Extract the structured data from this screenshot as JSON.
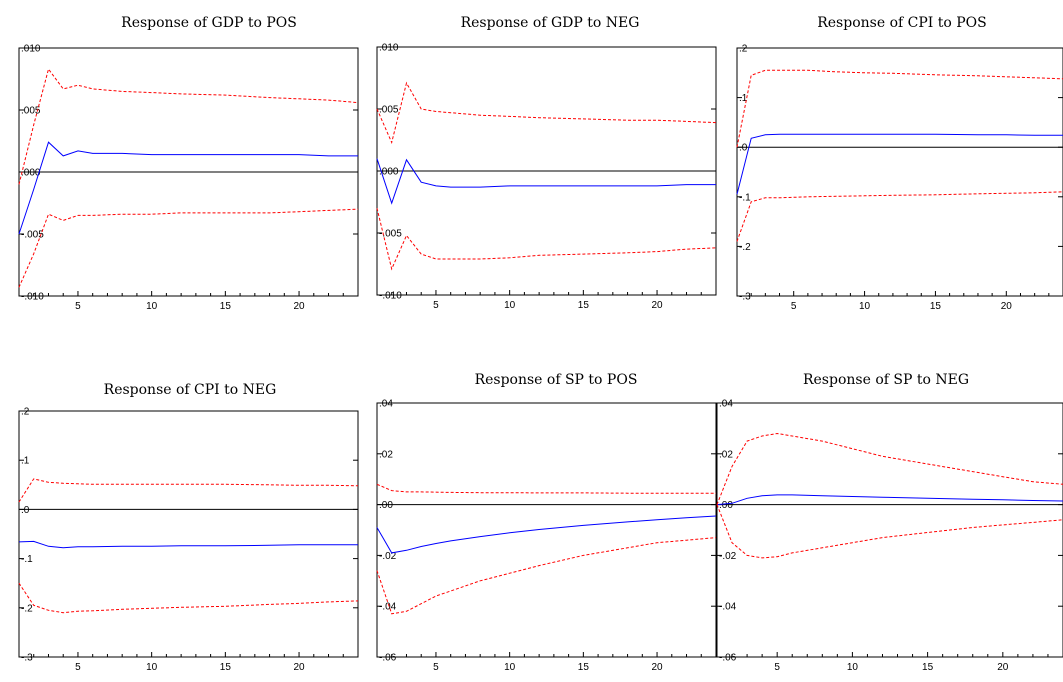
{
  "chart_data": [
    {
      "type": "line",
      "title": "Response of GDP to POS",
      "xlim": [
        1,
        24
      ],
      "ylim": [
        -0.01,
        0.01
      ],
      "x_ticks": [
        5,
        10,
        15,
        20
      ],
      "y_ticks": [
        -0.01,
        -0.005,
        0.0,
        0.005,
        0.01
      ],
      "y_tick_labels": [
        "-.010",
        "-.005",
        ".000",
        ".005",
        ".010"
      ],
      "series": [
        {
          "role": "response",
          "color": "#0000ff",
          "x": [
            1,
            2,
            3,
            4,
            5,
            6,
            8,
            10,
            12,
            15,
            18,
            20,
            22,
            24
          ],
          "y": [
            -0.005,
            -0.0014,
            0.0024,
            0.0013,
            0.0017,
            0.0015,
            0.0015,
            0.0014,
            0.0014,
            0.0014,
            0.0014,
            0.0014,
            0.0013,
            0.0013
          ]
        },
        {
          "role": "upper band",
          "color": "#ff0000",
          "x": [
            1,
            2,
            3,
            4,
            5,
            6,
            8,
            10,
            12,
            15,
            18,
            20,
            22,
            24
          ],
          "y": [
            -0.001,
            0.0038,
            0.0083,
            0.0067,
            0.007,
            0.0067,
            0.0065,
            0.0064,
            0.0063,
            0.0062,
            0.006,
            0.0059,
            0.0058,
            0.0056
          ]
        },
        {
          "role": "lower band",
          "color": "#ff0000",
          "x": [
            1,
            2,
            3,
            4,
            5,
            6,
            8,
            10,
            12,
            15,
            18,
            20,
            22,
            24
          ],
          "y": [
            -0.0093,
            -0.0066,
            -0.0034,
            -0.0039,
            -0.0035,
            -0.0035,
            -0.0034,
            -0.0034,
            -0.0033,
            -0.0033,
            -0.0033,
            -0.0032,
            -0.0031,
            -0.003
          ]
        }
      ]
    },
    {
      "type": "line",
      "title": "Response of GDP to NEG",
      "xlim": [
        1,
        24
      ],
      "ylim": [
        -0.01,
        0.01
      ],
      "x_ticks": [
        5,
        10,
        15,
        20
      ],
      "y_ticks": [
        -0.01,
        -0.005,
        0.0,
        0.005,
        0.01
      ],
      "y_tick_labels": [
        "-.010",
        "-.005",
        ".000",
        ".005",
        ".010"
      ],
      "series": [
        {
          "role": "response",
          "color": "#0000ff",
          "x": [
            1,
            2,
            3,
            4,
            5,
            6,
            8,
            10,
            12,
            15,
            18,
            20,
            22,
            24
          ],
          "y": [
            0.001,
            -0.0026,
            0.0009,
            -0.0009,
            -0.0012,
            -0.0013,
            -0.0013,
            -0.0012,
            -0.0012,
            -0.0012,
            -0.0012,
            -0.0012,
            -0.0011,
            -0.0011
          ]
        },
        {
          "role": "upper band",
          "color": "#ff0000",
          "x": [
            1,
            2,
            3,
            4,
            5,
            6,
            8,
            10,
            12,
            15,
            18,
            20,
            22,
            24
          ],
          "y": [
            0.005,
            0.0023,
            0.0071,
            0.005,
            0.0048,
            0.0047,
            0.0045,
            0.0044,
            0.0043,
            0.0042,
            0.0041,
            0.0041,
            0.004,
            0.0039
          ]
        },
        {
          "role": "lower band",
          "color": "#ff0000",
          "x": [
            1,
            2,
            3,
            4,
            5,
            6,
            8,
            10,
            12,
            15,
            18,
            20,
            22,
            24
          ],
          "y": [
            -0.003,
            -0.0079,
            -0.0052,
            -0.0067,
            -0.0071,
            -0.0071,
            -0.0071,
            -0.007,
            -0.0068,
            -0.0067,
            -0.0066,
            -0.0065,
            -0.0063,
            -0.0062
          ]
        }
      ]
    },
    {
      "type": "line",
      "title": "Response of CPI to POS",
      "xlim": [
        1,
        24
      ],
      "ylim": [
        -0.3,
        0.2
      ],
      "x_ticks": [
        5,
        10,
        15,
        20
      ],
      "y_ticks": [
        -0.3,
        -0.2,
        -0.1,
        0.0,
        0.1,
        0.2
      ],
      "y_tick_labels": [
        "-.3",
        "-.2",
        "-.1",
        ".0",
        ".1",
        ".2"
      ],
      "series": [
        {
          "role": "response",
          "color": "#0000ff",
          "x": [
            1,
            2,
            3,
            4,
            6,
            8,
            10,
            12,
            15,
            18,
            20,
            22,
            24
          ],
          "y": [
            -0.095,
            0.018,
            0.025,
            0.026,
            0.026,
            0.026,
            0.026,
            0.026,
            0.026,
            0.025,
            0.025,
            0.024,
            0.024
          ]
        },
        {
          "role": "upper band",
          "color": "#ff0000",
          "x": [
            1,
            2,
            3,
            4,
            6,
            8,
            10,
            12,
            15,
            18,
            20,
            22,
            24
          ],
          "y": [
            0.0,
            0.145,
            0.155,
            0.155,
            0.155,
            0.152,
            0.15,
            0.149,
            0.146,
            0.144,
            0.142,
            0.14,
            0.138
          ]
        },
        {
          "role": "lower band",
          "color": "#ff0000",
          "x": [
            1,
            2,
            3,
            4,
            6,
            8,
            10,
            12,
            15,
            18,
            20,
            22,
            24
          ],
          "y": [
            -0.19,
            -0.11,
            -0.102,
            -0.102,
            -0.1,
            -0.099,
            -0.098,
            -0.097,
            -0.096,
            -0.094,
            -0.093,
            -0.092,
            -0.09
          ]
        }
      ]
    },
    {
      "type": "line",
      "title": "Response of CPI to NEG",
      "xlim": [
        1,
        24
      ],
      "ylim": [
        -0.3,
        0.2
      ],
      "x_ticks": [
        5,
        10,
        15,
        20
      ],
      "y_ticks": [
        -0.3,
        -0.2,
        -0.1,
        0.0,
        0.1,
        0.2
      ],
      "y_tick_labels": [
        "-.3",
        "-.2",
        "-.1",
        ".0",
        ".1",
        ".2"
      ],
      "series": [
        {
          "role": "response",
          "color": "#0000ff",
          "x": [
            1,
            2,
            3,
            4,
            5,
            6,
            8,
            10,
            12,
            15,
            18,
            20,
            22,
            24
          ],
          "y": [
            -0.066,
            -0.065,
            -0.075,
            -0.078,
            -0.076,
            -0.076,
            -0.075,
            -0.075,
            -0.074,
            -0.074,
            -0.073,
            -0.072,
            -0.072,
            -0.072
          ]
        },
        {
          "role": "upper band",
          "color": "#ff0000",
          "x": [
            1,
            2,
            3,
            4,
            5,
            6,
            8,
            10,
            12,
            15,
            18,
            20,
            22,
            24
          ],
          "y": [
            0.015,
            0.062,
            0.055,
            0.053,
            0.052,
            0.051,
            0.051,
            0.051,
            0.051,
            0.051,
            0.05,
            0.049,
            0.049,
            0.048
          ]
        },
        {
          "role": "lower band",
          "color": "#ff0000",
          "x": [
            1,
            2,
            3,
            4,
            5,
            6,
            8,
            10,
            12,
            15,
            18,
            20,
            22,
            24
          ],
          "y": [
            -0.15,
            -0.195,
            -0.205,
            -0.21,
            -0.207,
            -0.206,
            -0.203,
            -0.201,
            -0.199,
            -0.197,
            -0.193,
            -0.191,
            -0.188,
            -0.186
          ]
        }
      ]
    },
    {
      "type": "line",
      "title": "Response of SP to POS",
      "xlim": [
        1,
        24
      ],
      "ylim": [
        -0.06,
        0.04
      ],
      "x_ticks": [
        5,
        10,
        15,
        20
      ],
      "y_ticks": [
        -0.06,
        -0.04,
        -0.02,
        0.0,
        0.02,
        0.04
      ],
      "y_tick_labels": [
        "-.06",
        "-.04",
        "-.02",
        ".00",
        ".02",
        ".04"
      ],
      "series": [
        {
          "role": "response",
          "color": "#0000ff",
          "x": [
            1,
            2,
            3,
            4,
            5,
            6,
            8,
            10,
            12,
            15,
            18,
            20,
            22,
            24
          ],
          "y": [
            -0.009,
            -0.019,
            -0.018,
            -0.0165,
            -0.0153,
            -0.0143,
            -0.0126,
            -0.0111,
            -0.0098,
            -0.0082,
            -0.0068,
            -0.006,
            -0.0052,
            -0.0045
          ]
        },
        {
          "role": "upper band",
          "color": "#ff0000",
          "x": [
            1,
            2,
            3,
            4,
            6,
            8,
            10,
            12,
            15,
            18,
            20,
            22,
            24
          ],
          "y": [
            0.008,
            0.0055,
            0.005,
            0.005,
            0.0048,
            0.0047,
            0.0047,
            0.0046,
            0.0046,
            0.0045,
            0.0045,
            0.0045,
            0.0045
          ]
        },
        {
          "role": "lower band",
          "color": "#ff0000",
          "x": [
            1,
            2,
            3,
            4,
            5,
            6,
            8,
            10,
            12,
            15,
            18,
            20,
            22,
            24
          ],
          "y": [
            -0.026,
            -0.043,
            -0.042,
            -0.039,
            -0.036,
            -0.034,
            -0.03,
            -0.027,
            -0.024,
            -0.02,
            -0.017,
            -0.015,
            -0.014,
            -0.013
          ]
        }
      ]
    },
    {
      "type": "line",
      "title": "Response of SP to NEG",
      "xlim": [
        1,
        24
      ],
      "ylim": [
        -0.06,
        0.04
      ],
      "x_ticks": [
        5,
        10,
        15,
        20
      ],
      "y_ticks": [
        -0.06,
        -0.04,
        -0.02,
        0.0,
        0.02,
        0.04
      ],
      "y_tick_labels": [
        "-.06",
        "-.04",
        "-.02",
        ".00",
        ".02",
        ".04"
      ],
      "series": [
        {
          "role": "response",
          "color": "#0000ff",
          "x": [
            1,
            2,
            3,
            4,
            5,
            6,
            8,
            10,
            12,
            15,
            18,
            20,
            22,
            24
          ],
          "y": [
            0.0,
            0.0005,
            0.0025,
            0.0035,
            0.0038,
            0.0038,
            0.0035,
            0.0032,
            0.0029,
            0.0025,
            0.0021,
            0.0019,
            0.0016,
            0.0014
          ]
        },
        {
          "role": "upper band",
          "color": "#ff0000",
          "x": [
            1,
            2,
            3,
            4,
            5,
            6,
            8,
            10,
            12,
            15,
            18,
            20,
            22,
            24
          ],
          "y": [
            0.0,
            0.015,
            0.025,
            0.027,
            0.028,
            0.027,
            0.025,
            0.022,
            0.019,
            0.016,
            0.013,
            0.011,
            0.009,
            0.008
          ]
        },
        {
          "role": "lower band",
          "color": "#ff0000",
          "x": [
            1,
            2,
            3,
            4,
            5,
            6,
            8,
            10,
            12,
            15,
            18,
            20,
            22,
            24
          ],
          "y": [
            0.0,
            -0.015,
            -0.02,
            -0.021,
            -0.0205,
            -0.019,
            -0.017,
            -0.015,
            -0.013,
            -0.011,
            -0.009,
            -0.008,
            -0.007,
            -0.006
          ]
        }
      ]
    }
  ]
}
